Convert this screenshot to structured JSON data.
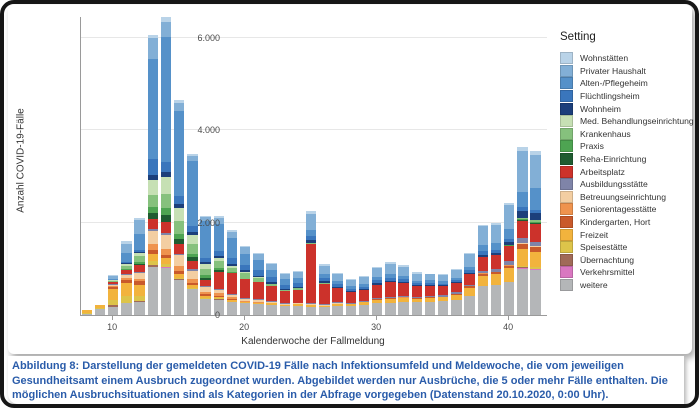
{
  "chart": {
    "y_axis": {
      "title": "Anzahl COVID-19-Fälle",
      "ticks": [
        {
          "label": "0",
          "value": 0
        },
        {
          "label": "2.000",
          "value": 2000
        },
        {
          "label": "4.000",
          "value": 4000
        },
        {
          "label": "6.000",
          "value": 6000
        }
      ]
    },
    "x_axis": {
      "title": "Kalenderwoche der Fallmeldung",
      "ticks": [
        10,
        20,
        30,
        40
      ]
    },
    "legend": {
      "title": "Setting"
    }
  },
  "chart_data": {
    "type": "bar",
    "stacked": true,
    "title": "",
    "xlabel": "Kalenderwoche der Fallmeldung",
    "ylabel": "Anzahl COVID-19-Fälle",
    "ylim": [
      0,
      6450
    ],
    "x": [
      8,
      9,
      10,
      11,
      12,
      13,
      14,
      15,
      16,
      17,
      18,
      19,
      20,
      21,
      22,
      23,
      24,
      25,
      26,
      27,
      28,
      29,
      30,
      31,
      32,
      33,
      34,
      35,
      36,
      37,
      38,
      39,
      40,
      41,
      42
    ],
    "legend_position": "right",
    "grid": true,
    "series": [
      {
        "name": "Wohnstätten",
        "color": "#b9d3e8",
        "values": [
          0,
          0,
          20,
          60,
          60,
          70,
          100,
          50,
          30,
          30,
          30,
          30,
          30,
          30,
          30,
          20,
          20,
          70,
          30,
          30,
          30,
          30,
          30,
          30,
          30,
          30,
          20,
          20,
          20,
          30,
          40,
          40,
          40,
          70,
          100
        ]
      },
      {
        "name": "Privater Haushalt",
        "color": "#82afd6",
        "values": [
          0,
          0,
          70,
          200,
          300,
          450,
          330,
          180,
          110,
          90,
          130,
          150,
          140,
          130,
          130,
          110,
          120,
          330,
          180,
          140,
          130,
          150,
          195,
          235,
          210,
          160,
          130,
          130,
          170,
          270,
          400,
          400,
          530,
          890,
          700
        ]
      },
      {
        "name": "Alten-/Pflegeheim",
        "color": "#5591c9",
        "values": [
          0,
          0,
          30,
          200,
          330,
          2150,
          2700,
          1850,
          1400,
          800,
          600,
          420,
          250,
          220,
          150,
          110,
          120,
          140,
          90,
          70,
          60,
          60,
          70,
          70,
          60,
          50,
          50,
          50,
          60,
          80,
          140,
          150,
          210,
          340,
          480
        ]
      },
      {
        "name": "Flüchtlingsheim",
        "color": "#3a76bc",
        "values": [
          0,
          0,
          0,
          30,
          50,
          360,
          220,
          160,
          130,
          90,
          110,
          130,
          110,
          120,
          110,
          90,
          80,
          80,
          70,
          60,
          50,
          50,
          60,
          70,
          60,
          50,
          40,
          40,
          40,
          50,
          70,
          60,
          70,
          80,
          70
        ]
      },
      {
        "name": "Wohnheim",
        "color": "#1c3f7b",
        "values": [
          0,
          0,
          0,
          20,
          30,
          100,
          120,
          90,
          70,
          40,
          40,
          40,
          30,
          30,
          30,
          20,
          30,
          60,
          40,
          30,
          20,
          20,
          30,
          30,
          30,
          20,
          30,
          20,
          20,
          30,
          50,
          50,
          70,
          150,
          160
        ]
      },
      {
        "name": "Med. Behandlungseinrichtung",
        "color": "#c6e0b4",
        "values": [
          0,
          0,
          10,
          30,
          60,
          330,
          350,
          280,
          200,
          110,
          60,
          40,
          30,
          20,
          0,
          0,
          0,
          0,
          0,
          0,
          0,
          0,
          0,
          0,
          0,
          0,
          0,
          0,
          0,
          0,
          0,
          0,
          0,
          0,
          0
        ]
      },
      {
        "name": "Krankenhaus",
        "color": "#86c17d",
        "values": [
          0,
          0,
          30,
          80,
          140,
          260,
          320,
          280,
          210,
          130,
          160,
          100,
          120,
          80,
          50,
          30,
          30,
          30,
          20,
          0,
          0,
          0,
          0,
          0,
          0,
          0,
          0,
          0,
          0,
          0,
          0,
          0,
          0,
          20,
          30
        ]
      },
      {
        "name": "Praxis",
        "color": "#4ea452",
        "values": [
          0,
          0,
          0,
          20,
          40,
          130,
          140,
          110,
          80,
          50,
          40,
          20,
          20,
          0,
          0,
          0,
          0,
          0,
          0,
          0,
          0,
          0,
          0,
          0,
          0,
          0,
          10,
          0,
          0,
          0,
          10,
          10,
          10,
          20,
          20
        ]
      },
      {
        "name": "Reha-Einrichtung",
        "color": "#1f5c31",
        "values": [
          0,
          0,
          0,
          0,
          20,
          140,
          150,
          120,
          90,
          50,
          30,
          0,
          0,
          0,
          0,
          0,
          0,
          0,
          0,
          0,
          0,
          0,
          10,
          0,
          0,
          0,
          0,
          0,
          0,
          0,
          0,
          0,
          10,
          20,
          20
        ]
      },
      {
        "name": "Arbeitsplatz",
        "color": "#cc322b",
        "values": [
          0,
          0,
          40,
          80,
          140,
          210,
          240,
          200,
          170,
          130,
          370,
          450,
          400,
          380,
          330,
          260,
          280,
          1280,
          430,
          300,
          240,
          230,
          290,
          330,
          280,
          230,
          210,
          190,
          200,
          230,
          290,
          300,
          330,
          380,
          400
        ]
      },
      {
        "name": "Ausbildungsstätte",
        "color": "#7f84a8",
        "values": [
          0,
          0,
          20,
          30,
          40,
          50,
          40,
          30,
          30,
          20,
          30,
          30,
          20,
          20,
          20,
          20,
          20,
          20,
          20,
          20,
          20,
          20,
          20,
          20,
          30,
          30,
          30,
          30,
          40,
          40,
          60,
          60,
          80,
          90,
          80
        ]
      },
      {
        "name": "Betreuungseinrichtung",
        "color": "#f3cea2",
        "values": [
          0,
          0,
          20,
          50,
          110,
          280,
          300,
          240,
          180,
          110,
          60,
          50,
          40,
          40,
          30,
          20,
          20,
          20,
          20,
          20,
          0,
          0,
          0,
          0,
          0,
          0,
          0,
          0,
          0,
          0,
          0,
          0,
          0,
          30,
          30
        ]
      },
      {
        "name": "Seniorentagesstätte",
        "color": "#ef934e",
        "values": [
          0,
          0,
          20,
          50,
          60,
          120,
          130,
          110,
          80,
          50,
          60,
          40,
          30,
          20,
          0,
          0,
          0,
          10,
          0,
          0,
          0,
          0,
          0,
          0,
          10,
          0,
          0,
          0,
          0,
          0,
          10,
          0,
          10,
          10,
          0
        ]
      },
      {
        "name": "Kindergarten, Hort",
        "color": "#c95a2b",
        "values": [
          0,
          0,
          40,
          70,
          70,
          90,
          80,
          60,
          50,
          40,
          20,
          20,
          0,
          0,
          0,
          0,
          0,
          0,
          0,
          0,
          0,
          0,
          10,
          10,
          10,
          10,
          20,
          20,
          20,
          30,
          40,
          50,
          60,
          110,
          100
        ]
      },
      {
        "name": "Freizeit",
        "color": "#f2b33d",
        "values": [
          60,
          70,
          240,
          280,
          250,
          150,
          120,
          80,
          60,
          40,
          40,
          30,
          30,
          30,
          30,
          30,
          40,
          40,
          30,
          40,
          40,
          70,
          80,
          90,
          80,
          70,
          70,
          80,
          100,
          170,
          230,
          240,
          290,
          350,
          330
        ]
      },
      {
        "name": "Speisestätte",
        "color": "#ddc44a",
        "values": [
          30,
          30,
          120,
          140,
          110,
          90,
          60,
          40,
          30,
          20,
          20,
          10,
          0,
          0,
          0,
          0,
          0,
          0,
          0,
          0,
          0,
          0,
          0,
          0,
          0,
          0,
          0,
          0,
          0,
          0,
          0,
          0,
          0,
          40,
          40
        ]
      },
      {
        "name": "Übernachtung",
        "color": "#a06a58",
        "values": [
          0,
          0,
          30,
          20,
          20,
          30,
          20,
          10,
          0,
          0,
          10,
          0,
          0,
          0,
          0,
          0,
          0,
          0,
          0,
          0,
          0,
          0,
          0,
          0,
          0,
          0,
          0,
          0,
          0,
          0,
          0,
          0,
          0,
          10,
          10
        ]
      },
      {
        "name": "Verkehrsmittel",
        "color": "#d977c0",
        "values": [
          0,
          0,
          10,
          0,
          0,
          20,
          10,
          0,
          0,
          0,
          0,
          0,
          0,
          0,
          0,
          0,
          0,
          0,
          0,
          0,
          0,
          0,
          0,
          0,
          0,
          0,
          0,
          0,
          0,
          0,
          0,
          0,
          0,
          20,
          10
        ]
      },
      {
        "name": "weitere",
        "color": "#b4b6b8",
        "values": [
          20,
          120,
          170,
          250,
          280,
          1030,
          1020,
          760,
          560,
          350,
          330,
          280,
          250,
          230,
          220,
          190,
          190,
          170,
          170,
          200,
          200,
          220,
          250,
          260,
          280,
          280,
          290,
          300,
          330,
          420,
          620,
          640,
          720,
          1000,
          980
        ]
      }
    ]
  },
  "caption": {
    "text": "Abbildung 8: Darstellung der gemeldeten COVID-19 Fälle nach Infektionsumfeld und Meldewoche, die vom jeweiligen Gesundheitsamt einem Ausbruch zugeordnet wurden. Abgebildet werden nur Ausbrüche, die 5 oder mehr Fälle enthalten. Die möglichen Ausbruchsituationen sind als Kategorien in der Abfrage vorgegeben (Datenstand 20.10.2020, 0:00 Uhr)."
  }
}
